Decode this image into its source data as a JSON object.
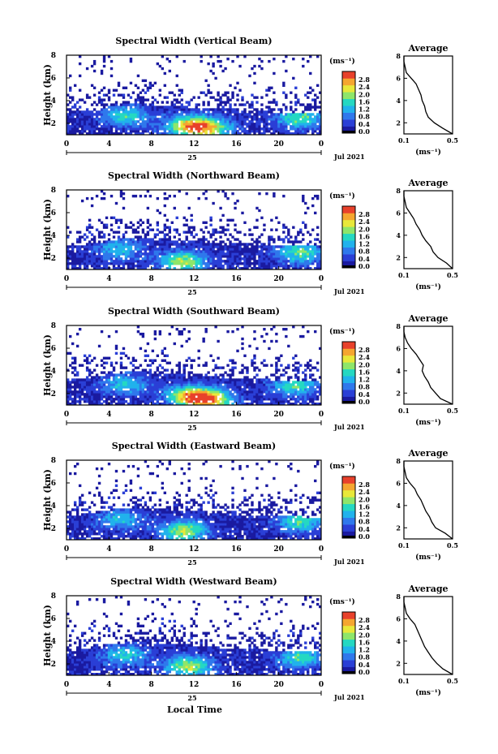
{
  "figure": {
    "xlabel": "Local Time",
    "date_label": "Jul 2021",
    "day_label": "25",
    "colorbar_unit": "(ms⁻¹)",
    "colorbar_ticks": [
      "0.0",
      "0.4",
      "0.8",
      "1.2",
      "1.6",
      "2.0",
      "2.4",
      "2.8"
    ],
    "average_title": "Average",
    "average_xlabel": "(ms⁻¹)",
    "average_xticks": [
      "0.1",
      "0.5"
    ],
    "average_yticks": [
      "2",
      "4",
      "6",
      "8"
    ]
  },
  "colors": {
    "scale": [
      "#1a1aa0",
      "#2a3fd6",
      "#2f78ec",
      "#21b2ec",
      "#25d8c2",
      "#8ee66a",
      "#e8e83a",
      "#f5a630",
      "#e8412b"
    ]
  },
  "chart_data": [
    {
      "type": "heatmap",
      "title": "Spectral Width (Vertical Beam)",
      "xlabel": "",
      "ylabel": "Height (km)",
      "x_ticks": [
        "0",
        "4",
        "8",
        "12",
        "16",
        "20",
        "0"
      ],
      "y_ticks": [
        "2",
        "4",
        "6",
        "8"
      ],
      "xlim": [
        0,
        24
      ],
      "ylim": [
        1,
        8
      ],
      "zlim": [
        0,
        3.0
      ],
      "echo_top_km": [
        3.0,
        3.1,
        3.2,
        3.6,
        3.7,
        3.7,
        3.6,
        3.5,
        3.4,
        3.3,
        3.3,
        3.2,
        3.1,
        3.0,
        3.0,
        3.0,
        2.9
      ],
      "hotspots": [
        {
          "t": 11.5,
          "h": 1.8,
          "v": 1.8
        },
        {
          "t": 13.5,
          "h": 1.6,
          "v": 1.6
        },
        {
          "t": 5.5,
          "h": 2.7,
          "v": 1.2
        },
        {
          "t": 22.0,
          "h": 2.5,
          "v": 1.4
        }
      ],
      "average": {
        "height_km": [
          1.0,
          1.5,
          2.0,
          2.5,
          3.0,
          3.5,
          4.0,
          4.5,
          5.0,
          5.5,
          6.0,
          6.5,
          7.0,
          7.5,
          8.0
        ],
        "width": [
          0.5,
          0.42,
          0.35,
          0.3,
          0.28,
          0.27,
          0.25,
          0.24,
          0.22,
          0.2,
          0.16,
          0.12,
          0.11,
          0.1,
          0.1
        ]
      }
    },
    {
      "type": "heatmap",
      "title": "Spectral Width (Northward Beam)",
      "xlabel": "",
      "ylabel": "Height (km)",
      "x_ticks": [
        "0",
        "4",
        "8",
        "12",
        "16",
        "20",
        "0"
      ],
      "y_ticks": [
        "2",
        "4",
        "6",
        "8"
      ],
      "xlim": [
        0,
        24
      ],
      "ylim": [
        1,
        8
      ],
      "zlim": [
        0,
        3.0
      ],
      "echo_top_km": [
        3.0,
        3.2,
        3.3,
        3.6,
        3.8,
        3.8,
        3.7,
        3.6,
        3.5,
        3.4,
        3.4,
        3.3,
        3.2,
        3.2,
        3.1,
        3.1,
        3.0
      ],
      "hotspots": [
        {
          "t": 11.0,
          "h": 1.7,
          "v": 1.7
        },
        {
          "t": 22.0,
          "h": 2.5,
          "v": 1.4
        },
        {
          "t": 5.0,
          "h": 2.8,
          "v": 1.0
        }
      ],
      "average": {
        "height_km": [
          1.0,
          1.5,
          2.0,
          2.5,
          3.0,
          3.5,
          4.0,
          4.5,
          5.0,
          5.5,
          6.0,
          6.5,
          7.0,
          7.5,
          8.0
        ],
        "width": [
          0.5,
          0.45,
          0.38,
          0.34,
          0.32,
          0.28,
          0.25,
          0.23,
          0.2,
          0.18,
          0.15,
          0.12,
          0.11,
          0.1,
          0.1
        ]
      }
    },
    {
      "type": "heatmap",
      "title": "Spectral Width (Southward Beam)",
      "xlabel": "",
      "ylabel": "Height (km)",
      "x_ticks": [
        "0",
        "4",
        "8",
        "12",
        "16",
        "20",
        "0"
      ],
      "y_ticks": [
        "2",
        "4",
        "6",
        "8"
      ],
      "xlim": [
        0,
        24
      ],
      "ylim": [
        1,
        8
      ],
      "zlim": [
        0,
        3.0
      ],
      "echo_top_km": [
        3.2,
        3.3,
        3.5,
        3.8,
        3.9,
        3.9,
        3.8,
        3.7,
        3.6,
        3.5,
        3.4,
        3.3,
        3.3,
        3.2,
        3.2,
        3.1,
        3.0
      ],
      "hotspots": [
        {
          "t": 11.5,
          "h": 1.8,
          "v": 1.8
        },
        {
          "t": 13.5,
          "h": 1.5,
          "v": 2.0
        },
        {
          "t": 5.5,
          "h": 2.8,
          "v": 1.1
        },
        {
          "t": 21.5,
          "h": 2.7,
          "v": 1.3
        }
      ],
      "average": {
        "height_km": [
          1.0,
          1.5,
          2.0,
          2.5,
          3.0,
          3.5,
          4.0,
          4.5,
          5.0,
          5.5,
          6.0,
          6.5,
          7.0,
          7.5,
          8.0
        ],
        "width": [
          0.5,
          0.4,
          0.36,
          0.32,
          0.3,
          0.27,
          0.25,
          0.26,
          0.23,
          0.2,
          0.16,
          0.13,
          0.11,
          0.1,
          0.1
        ]
      }
    },
    {
      "type": "heatmap",
      "title": "Spectral Width (Eastward Beam)",
      "xlabel": "",
      "ylabel": "Height (km)",
      "x_ticks": [
        "0",
        "4",
        "8",
        "12",
        "16",
        "20",
        "0"
      ],
      "y_ticks": [
        "2",
        "4",
        "6",
        "8"
      ],
      "xlim": [
        0,
        24
      ],
      "ylim": [
        1,
        8
      ],
      "zlim": [
        0,
        3.0
      ],
      "echo_top_km": [
        3.0,
        3.2,
        3.4,
        3.7,
        3.8,
        3.8,
        3.7,
        3.6,
        3.5,
        3.4,
        3.3,
        3.2,
        3.2,
        3.1,
        3.1,
        3.0,
        3.0
      ],
      "hotspots": [
        {
          "t": 11.0,
          "h": 1.8,
          "v": 1.7
        },
        {
          "t": 5.0,
          "h": 2.8,
          "v": 1.0
        },
        {
          "t": 22.0,
          "h": 2.6,
          "v": 1.3
        }
      ],
      "average": {
        "height_km": [
          1.0,
          1.5,
          2.0,
          2.5,
          3.0,
          3.5,
          4.0,
          4.5,
          5.0,
          5.5,
          6.0,
          6.5,
          7.0,
          7.5,
          8.0
        ],
        "width": [
          0.5,
          0.44,
          0.36,
          0.33,
          0.31,
          0.28,
          0.26,
          0.24,
          0.21,
          0.19,
          0.15,
          0.12,
          0.11,
          0.1,
          0.1
        ]
      }
    },
    {
      "type": "heatmap",
      "title": "Spectral Width (Westward Beam)",
      "xlabel": "Local Time",
      "ylabel": "Height (km)",
      "x_ticks": [
        "0",
        "4",
        "8",
        "12",
        "16",
        "20",
        "0"
      ],
      "y_ticks": [
        "2",
        "4",
        "6",
        "8"
      ],
      "xlim": [
        0,
        24
      ],
      "ylim": [
        1,
        8
      ],
      "zlim": [
        0,
        3.0
      ],
      "echo_top_km": [
        3.1,
        3.3,
        3.5,
        3.8,
        3.9,
        3.9,
        3.8,
        3.7,
        3.6,
        3.5,
        3.4,
        3.3,
        3.2,
        3.2,
        3.1,
        3.1,
        3.0
      ],
      "hotspots": [
        {
          "t": 11.5,
          "h": 1.8,
          "v": 1.7
        },
        {
          "t": 5.5,
          "h": 2.8,
          "v": 1.1
        },
        {
          "t": 22.0,
          "h": 2.6,
          "v": 1.3
        }
      ],
      "average": {
        "height_km": [
          1.0,
          1.5,
          2.0,
          2.5,
          3.0,
          3.5,
          4.0,
          4.5,
          5.0,
          5.5,
          6.0,
          6.5,
          7.0,
          7.5,
          8.0
        ],
        "width": [
          0.5,
          0.42,
          0.37,
          0.33,
          0.3,
          0.27,
          0.25,
          0.23,
          0.21,
          0.19,
          0.15,
          0.12,
          0.11,
          0.1,
          0.1
        ]
      }
    }
  ]
}
